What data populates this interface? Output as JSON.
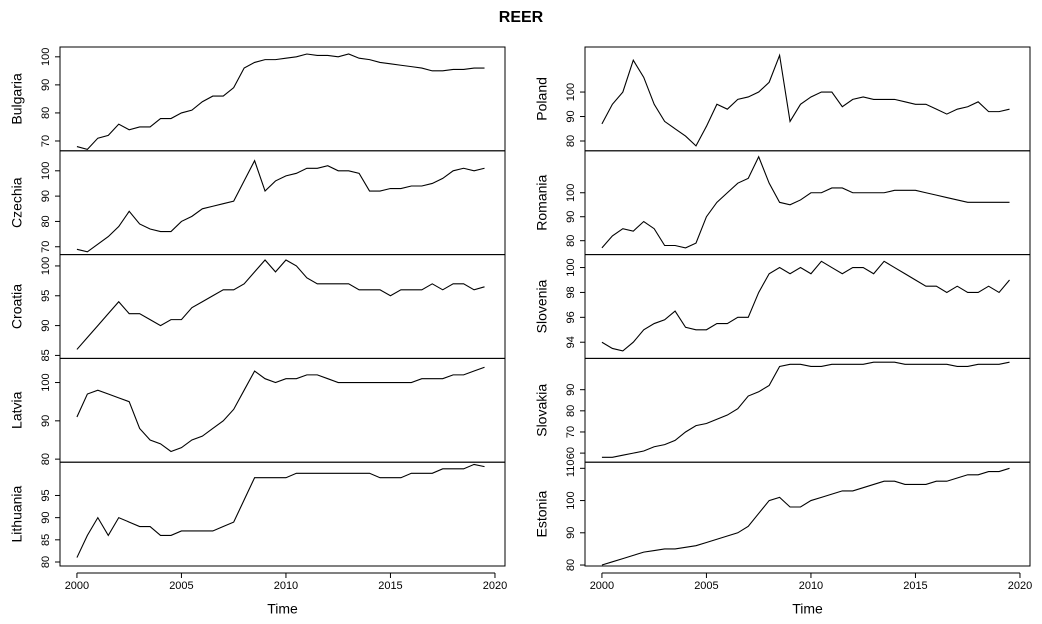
{
  "title": "REER",
  "chart_data": [
    {
      "type": "line",
      "ylabel": "Bulgaria",
      "color": "#000000",
      "x": [
        2000,
        2000.5,
        2001,
        2001.5,
        2002,
        2002.5,
        2003,
        2003.5,
        2004,
        2004.5,
        2005,
        2005.5,
        2006,
        2006.5,
        2007,
        2007.5,
        2008,
        2008.5,
        2009,
        2009.5,
        2010,
        2010.5,
        2011,
        2011.5,
        2012,
        2012.5,
        2013,
        2013.5,
        2014,
        2014.5,
        2015,
        2015.5,
        2016,
        2016.5,
        2017,
        2017.5,
        2018,
        2018.5,
        2019,
        2019.5
      ],
      "values": [
        68,
        67,
        71,
        72,
        76,
        74,
        75,
        75,
        78,
        78,
        80,
        81,
        84,
        86,
        86,
        89,
        96,
        98,
        99,
        99,
        99.5,
        100,
        101,
        100.5,
        100.5,
        100,
        101,
        99.5,
        99,
        98,
        97.5,
        97,
        96.5,
        96,
        95,
        95,
        95.5,
        95.5,
        96,
        96
      ],
      "xlim": [
        1999.19,
        2020.48
      ],
      "ylim": [
        66.5,
        103.5
      ],
      "yticks": [
        70,
        80,
        90,
        100
      ]
    },
    {
      "type": "line",
      "ylabel": "Czechia",
      "color": "#000000",
      "x": [
        2000,
        2000.5,
        2001,
        2001.5,
        2002,
        2002.5,
        2003,
        2003.5,
        2004,
        2004.5,
        2005,
        2005.5,
        2006,
        2006.5,
        2007,
        2007.5,
        2008,
        2008.5,
        2009,
        2009.5,
        2010,
        2010.5,
        2011,
        2011.5,
        2012,
        2012.5,
        2013,
        2013.5,
        2014,
        2014.5,
        2015,
        2015.5,
        2016,
        2016.5,
        2017,
        2017.5,
        2018,
        2018.5,
        2019,
        2019.5
      ],
      "values": [
        69,
        68,
        71,
        74,
        78,
        84,
        79,
        77,
        76,
        76,
        80,
        82,
        85,
        86,
        87,
        88,
        96,
        104,
        92,
        96,
        98,
        99,
        101,
        101,
        102,
        100,
        100,
        99,
        92,
        92,
        93,
        93,
        94,
        94,
        95,
        97,
        100,
        101,
        100,
        101
      ],
      "xlim": [
        1999.19,
        2020.48
      ],
      "ylim": [
        66.9,
        107.9
      ],
      "yticks": [
        70,
        80,
        90,
        100
      ]
    },
    {
      "type": "line",
      "ylabel": "Croatia",
      "color": "#000000",
      "x": [
        2000,
        2000.5,
        2001,
        2001.5,
        2002,
        2002.5,
        2003,
        2003.5,
        2004,
        2004.5,
        2005,
        2005.5,
        2006,
        2006.5,
        2007,
        2007.5,
        2008,
        2008.5,
        2009,
        2009.5,
        2010,
        2010.5,
        2011,
        2011.5,
        2012,
        2012.5,
        2013,
        2013.5,
        2014,
        2014.5,
        2015,
        2015.5,
        2016,
        2016.5,
        2017,
        2017.5,
        2018,
        2018.5,
        2019,
        2019.5
      ],
      "values": [
        86,
        88,
        90,
        92,
        94,
        92,
        92,
        91,
        90,
        91,
        91,
        93,
        94,
        95,
        96,
        96,
        97,
        99,
        101,
        99,
        101,
        100,
        98,
        97,
        97,
        97,
        97,
        96,
        96,
        96,
        95,
        96,
        96,
        96,
        97,
        96,
        97,
        97,
        96,
        96.5
      ],
      "xlim": [
        1999.19,
        2020.48
      ],
      "ylim": [
        84.5,
        101.9
      ],
      "yticks": [
        85,
        90,
        95,
        100
      ]
    },
    {
      "type": "line",
      "ylabel": "Latvia",
      "color": "#000000",
      "x": [
        2000,
        2000.5,
        2001,
        2001.5,
        2002,
        2002.5,
        2003,
        2003.5,
        2004,
        2004.5,
        2005,
        2005.5,
        2006,
        2006.5,
        2007,
        2007.5,
        2008,
        2008.5,
        2009,
        2009.5,
        2010,
        2010.5,
        2011,
        2011.5,
        2012,
        2012.5,
        2013,
        2013.5,
        2014,
        2014.5,
        2015,
        2015.5,
        2016,
        2016.5,
        2017,
        2017.5,
        2018,
        2018.5,
        2019,
        2019.5
      ],
      "values": [
        91,
        97,
        98,
        97,
        96,
        95,
        88,
        85,
        84,
        82,
        83,
        85,
        86,
        88,
        90,
        93,
        98,
        103,
        101,
        100,
        101,
        101,
        102,
        102,
        101,
        100,
        100,
        100,
        100,
        100,
        100,
        100,
        100,
        101,
        101,
        101,
        102,
        102,
        103,
        104
      ],
      "xlim": [
        1999.19,
        2020.48
      ],
      "ylim": [
        79.2,
        106.3
      ],
      "yticks": [
        80,
        90,
        100
      ]
    },
    {
      "type": "line",
      "ylabel": "Lithuania",
      "color": "#000000",
      "xlabel": "Time",
      "x": [
        2000,
        2000.5,
        2001,
        2001.5,
        2002,
        2002.5,
        2003,
        2003.5,
        2004,
        2004.5,
        2005,
        2005.5,
        2006,
        2006.5,
        2007,
        2007.5,
        2008,
        2008.5,
        2009,
        2009.5,
        2010,
        2010.5,
        2011,
        2011.5,
        2012,
        2012.5,
        2013,
        2013.5,
        2014,
        2014.5,
        2015,
        2015.5,
        2016,
        2016.5,
        2017,
        2017.5,
        2018,
        2018.5,
        2019,
        2019.5
      ],
      "values": [
        81,
        86,
        90,
        86,
        90,
        89,
        88,
        88,
        86,
        86,
        87,
        87,
        87,
        87,
        88,
        89,
        94,
        99,
        99,
        99,
        99,
        100,
        100,
        100,
        100,
        100,
        100,
        100,
        100,
        99,
        99,
        99,
        100,
        100,
        100,
        101,
        101,
        101,
        102,
        101.5
      ],
      "xlim": [
        1999.19,
        2020.48
      ],
      "xticks": [
        2000,
        2005,
        2010,
        2015,
        2020
      ],
      "ylim": [
        79.1,
        102.5
      ],
      "yticks": [
        80,
        85,
        90,
        95
      ]
    },
    {
      "type": "line",
      "ylabel": "Poland",
      "color": "#000000",
      "x": [
        2000,
        2000.5,
        2001,
        2001.5,
        2002,
        2002.5,
        2003,
        2003.5,
        2004,
        2004.5,
        2005,
        2005.5,
        2006,
        2006.5,
        2007,
        2007.5,
        2008,
        2008.5,
        2009,
        2009.5,
        2010,
        2010.5,
        2011,
        2011.5,
        2012,
        2012.5,
        2013,
        2013.5,
        2014,
        2014.5,
        2015,
        2015.5,
        2016,
        2016.5,
        2017,
        2017.5,
        2018,
        2018.5,
        2019,
        2019.5
      ],
      "values": [
        87,
        95,
        100,
        113,
        106,
        95,
        88,
        85,
        82,
        78,
        86,
        95,
        93,
        97,
        98,
        100,
        104,
        115,
        88,
        95,
        98,
        100,
        100,
        94,
        97,
        98,
        97,
        97,
        97,
        96,
        95,
        95,
        93,
        91,
        93,
        94,
        96,
        92,
        92,
        93
      ],
      "xlim": [
        1999.19,
        2020.48
      ],
      "ylim": [
        76,
        118.4
      ],
      "yticks": [
        80,
        90,
        100
      ]
    },
    {
      "type": "line",
      "ylabel": "Romania",
      "color": "#000000",
      "x": [
        2000,
        2000.5,
        2001,
        2001.5,
        2002,
        2002.5,
        2003,
        2003.5,
        2004,
        2004.5,
        2005,
        2005.5,
        2006,
        2006.5,
        2007,
        2007.5,
        2008,
        2008.5,
        2009,
        2009.5,
        2010,
        2010.5,
        2011,
        2011.5,
        2012,
        2012.5,
        2013,
        2013.5,
        2014,
        2014.5,
        2015,
        2015.5,
        2016,
        2016.5,
        2017,
        2017.5,
        2018,
        2018.5,
        2019,
        2019.5
      ],
      "values": [
        77,
        82,
        85,
        84,
        88,
        85,
        78,
        78,
        77,
        79,
        90,
        96,
        100,
        104,
        106,
        115,
        104,
        96,
        95,
        97,
        100,
        100,
        102,
        102,
        100,
        100,
        100,
        100,
        101,
        101,
        101,
        100,
        99,
        98,
        97,
        96,
        96,
        96,
        96,
        96
      ],
      "xlim": [
        1999.19,
        2020.48
      ],
      "ylim": [
        74.2,
        117.5
      ],
      "yticks": [
        80,
        90,
        100
      ]
    },
    {
      "type": "line",
      "ylabel": "Slovenia",
      "color": "#000000",
      "x": [
        2000,
        2000.5,
        2001,
        2001.5,
        2002,
        2002.5,
        2003,
        2003.5,
        2004,
        2004.5,
        2005,
        2005.5,
        2006,
        2006.5,
        2007,
        2007.5,
        2008,
        2008.5,
        2009,
        2009.5,
        2010,
        2010.5,
        2011,
        2011.5,
        2012,
        2012.5,
        2013,
        2013.5,
        2014,
        2014.5,
        2015,
        2015.5,
        2016,
        2016.5,
        2017,
        2017.5,
        2018,
        2018.5,
        2019,
        2019.5
      ],
      "values": [
        94,
        93.5,
        93.3,
        94,
        95,
        95.5,
        95.8,
        96.5,
        95.2,
        95,
        95,
        95.5,
        95.5,
        96,
        96,
        98,
        99.5,
        100,
        99.5,
        100,
        99.5,
        100.5,
        100,
        99.5,
        100,
        100,
        99.5,
        100.5,
        100,
        99.5,
        99,
        98.5,
        98.5,
        98,
        98.5,
        98,
        98,
        98.5,
        98,
        99
      ],
      "xlim": [
        1999.19,
        2020.48
      ],
      "ylim": [
        92.7,
        101.04
      ],
      "yticks": [
        94,
        96,
        98,
        100
      ]
    },
    {
      "type": "line",
      "ylabel": "Slovakia",
      "color": "#000000",
      "x": [
        2000,
        2000.5,
        2001,
        2001.5,
        2002,
        2002.5,
        2003,
        2003.5,
        2004,
        2004.5,
        2005,
        2005.5,
        2006,
        2006.5,
        2007,
        2007.5,
        2008,
        2008.5,
        2009,
        2009.5,
        2010,
        2010.5,
        2011,
        2011.5,
        2012,
        2012.5,
        2013,
        2013.5,
        2014,
        2014.5,
        2015,
        2015.5,
        2016,
        2016.5,
        2017,
        2017.5,
        2018,
        2018.5,
        2019,
        2019.5
      ],
      "values": [
        58,
        58,
        59,
        60,
        61,
        63,
        64,
        66,
        70,
        73,
        74,
        76,
        78,
        81,
        87,
        89,
        92,
        101,
        102,
        102,
        101,
        101,
        102,
        102,
        102,
        102,
        103,
        103,
        103,
        102,
        102,
        102,
        102,
        102,
        101,
        101,
        102,
        102,
        102,
        103
      ],
      "xlim": [
        1999.19,
        2020.48
      ],
      "ylim": [
        55.7,
        104.8
      ],
      "yticks": [
        60,
        70,
        80,
        90
      ]
    },
    {
      "type": "line",
      "ylabel": "Estonia",
      "color": "#000000",
      "xlabel": "Time",
      "x": [
        2000,
        2000.5,
        2001,
        2001.5,
        2002,
        2002.5,
        2003,
        2003.5,
        2004,
        2004.5,
        2005,
        2005.5,
        2006,
        2006.5,
        2007,
        2007.5,
        2008,
        2008.5,
        2009,
        2009.5,
        2010,
        2010.5,
        2011,
        2011.5,
        2012,
        2012.5,
        2013,
        2013.5,
        2014,
        2014.5,
        2015,
        2015.5,
        2016,
        2016.5,
        2017,
        2017.5,
        2018,
        2018.5,
        2019,
        2019.5
      ],
      "values": [
        80,
        81,
        82,
        83,
        84,
        84.5,
        85,
        85,
        85.5,
        86,
        87,
        88,
        89,
        90,
        92,
        96,
        100,
        101,
        98,
        98,
        100,
        101,
        102,
        103,
        103,
        104,
        105,
        106,
        106,
        105,
        105,
        105,
        106,
        106,
        107,
        108,
        108,
        109,
        109,
        110
      ],
      "xlim": [
        1999.19,
        2020.48
      ],
      "xticks": [
        2000,
        2005,
        2010,
        2015,
        2020
      ],
      "ylim": [
        79.7,
        111.9
      ],
      "yticks": [
        80,
        90,
        100,
        110
      ]
    }
  ]
}
